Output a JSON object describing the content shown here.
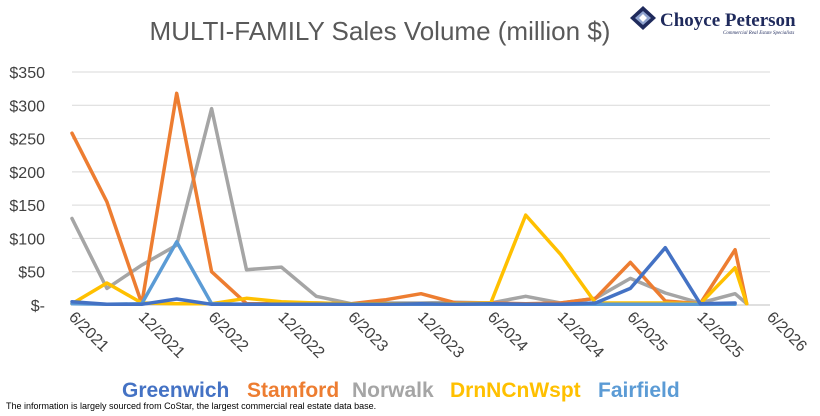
{
  "logo": {
    "name": "Choyce Peterson",
    "tagline": "Commercial Real Estate Specialists"
  },
  "source_note": "The information is largely sourced from CoStar, the largest commercial real estate data base.",
  "chart_data": {
    "type": "line",
    "title": "MULTI-FAMILY Sales Volume (million $)",
    "xlabel": "",
    "ylabel": "",
    "ylim": [
      0,
      350
    ],
    "y_ticks": [
      0,
      50,
      100,
      150,
      200,
      250,
      300,
      350
    ],
    "y_tick_labels": [
      "$-",
      "$50",
      "$100",
      "$150",
      "$200",
      "$250",
      "$300",
      "$350"
    ],
    "x_range": [
      "2021-06",
      "2026-06"
    ],
    "x_ticks": [
      "2021-06",
      "2021-12",
      "2022-06",
      "2022-12",
      "2023-06",
      "2023-12",
      "2024-06",
      "2024-12",
      "2025-06",
      "2025-12",
      "2026-06"
    ],
    "x_tick_labels": [
      "6/2021",
      "12/2021",
      "6/2022",
      "12/2022",
      "6/2023",
      "12/2023",
      "6/2024",
      "12/2024",
      "6/2025",
      "12/2025",
      "6/2026"
    ],
    "grid": true,
    "legend_position": "bottom",
    "series": [
      {
        "name": "Greenwich",
        "color": "#4472C4",
        "x": [
          "2021-06",
          "2021-09",
          "2021-12",
          "2022-03",
          "2022-06",
          "2022-09",
          "2022-12",
          "2023-03",
          "2023-06",
          "2023-09",
          "2023-12",
          "2024-03",
          "2024-06",
          "2024-09",
          "2024-12",
          "2025-03",
          "2025-06",
          "2025-09",
          "2025-12",
          "2026-03"
        ],
        "values": [
          5,
          1,
          1,
          9,
          1,
          1,
          1,
          1,
          1,
          1,
          2,
          1,
          2,
          1,
          1,
          3,
          25,
          86,
          2,
          3
        ]
      },
      {
        "name": "Stamford",
        "color": "#ED7D31",
        "x": [
          "2021-06",
          "2021-09",
          "2021-12",
          "2022-03",
          "2022-06",
          "2022-09",
          "2022-12",
          "2023-03",
          "2023-06",
          "2023-09",
          "2023-12",
          "2024-03",
          "2024-06",
          "2024-09",
          "2024-12",
          "2025-03",
          "2025-06",
          "2025-09",
          "2025-12",
          "2026-03",
          "2026-04"
        ],
        "values": [
          258,
          155,
          2,
          318,
          50,
          2,
          2,
          3,
          2,
          8,
          17,
          3,
          3,
          2,
          3,
          10,
          64,
          6,
          2,
          83,
          2
        ]
      },
      {
        "name": "Norwalk",
        "color": "#A5A5A5",
        "x": [
          "2021-06",
          "2021-09",
          "2021-12",
          "2022-03",
          "2022-06",
          "2022-09",
          "2022-12",
          "2023-03",
          "2023-06",
          "2023-09",
          "2023-12",
          "2024-03",
          "2024-06",
          "2024-09",
          "2024-12",
          "2025-03",
          "2025-06",
          "2025-09",
          "2025-12",
          "2026-03",
          "2026-04"
        ],
        "values": [
          130,
          25,
          60,
          90,
          295,
          53,
          57,
          13,
          2,
          3,
          3,
          4,
          3,
          13,
          3,
          10,
          40,
          18,
          3,
          17,
          2
        ]
      },
      {
        "name": "DrnNCnWspt",
        "color": "#FFC000",
        "x": [
          "2021-06",
          "2021-09",
          "2021-12",
          "2022-03",
          "2022-06",
          "2022-09",
          "2022-12",
          "2023-03",
          "2023-06",
          "2023-09",
          "2023-12",
          "2024-03",
          "2024-06",
          "2024-09",
          "2024-12",
          "2025-03",
          "2025-06",
          "2025-09",
          "2025-12",
          "2026-03",
          "2026-04"
        ],
        "values": [
          2,
          33,
          3,
          2,
          2,
          10,
          5,
          3,
          2,
          2,
          2,
          2,
          3,
          135,
          76,
          3,
          3,
          3,
          2,
          56,
          2
        ]
      },
      {
        "name": "Fairfield",
        "color": "#5B9BD5",
        "x": [
          "2021-06",
          "2021-09",
          "2021-12",
          "2022-03",
          "2022-06",
          "2022-09",
          "2022-12",
          "2023-03",
          "2023-06",
          "2023-09",
          "2023-12",
          "2024-03",
          "2024-06",
          "2024-09",
          "2024-12",
          "2025-03",
          "2025-06",
          "2025-09",
          "2025-12",
          "2026-03"
        ],
        "values": [
          2,
          1,
          2,
          95,
          2,
          1,
          1,
          1,
          1,
          1,
          1,
          1,
          1,
          1,
          1,
          1,
          1,
          1,
          1,
          1
        ]
      }
    ]
  }
}
